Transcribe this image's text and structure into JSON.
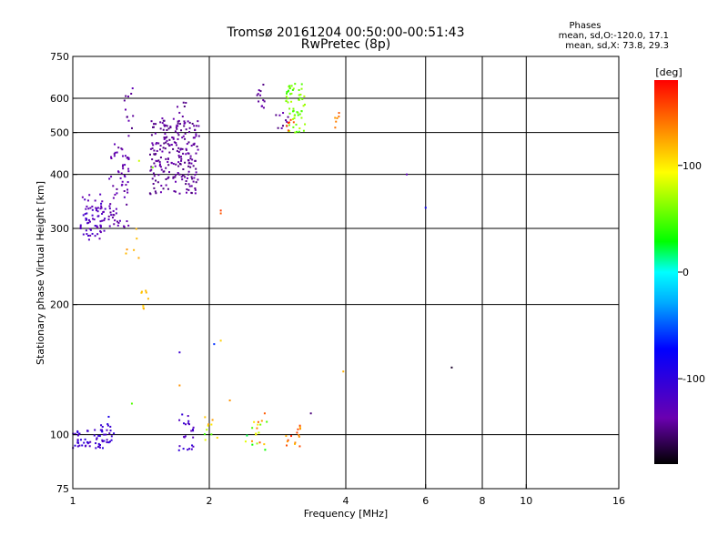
{
  "chart_data": {
    "type": "scatter",
    "title": "Tromsø 20161204 00:50:00-00:51:43",
    "subtitle": "RwPretec (8p)",
    "xlabel": "Frequency [MHz]",
    "ylabel": "Stationary phase Virtual Height [km]",
    "x_scale": "log",
    "y_scale": "log",
    "xlim": [
      1,
      16
    ],
    "ylim": [
      75,
      750
    ],
    "x_ticks": [
      1,
      2,
      4,
      6,
      8,
      10,
      16
    ],
    "y_ticks": [
      75,
      100,
      200,
      300,
      400,
      500,
      600,
      750
    ],
    "grid": true,
    "stats": {
      "heading": "Phases",
      "line_o": "mean, sd,O:-120.0, 17.1",
      "line_x": "mean, sd,X:  73.8, 29.3"
    },
    "colorbar": {
      "label": "[deg]",
      "range": [
        -180,
        180
      ],
      "ticks": [
        100,
        0,
        -100
      ]
    },
    "clusters": [
      {
        "f": [
          1.04,
          1.18
        ],
        "h": [
          282,
          360
        ],
        "ph": [
          -140,
          -110
        ],
        "n": 70
      },
      {
        "f": [
          1.2,
          1.33
        ],
        "h": [
          300,
          480
        ],
        "ph": [
          -145,
          -125
        ],
        "n": 70
      },
      {
        "f": [
          1.3,
          1.36
        ],
        "h": [
          470,
          640
        ],
        "ph": [
          -150,
          -130
        ],
        "n": 12
      },
      {
        "f": [
          1.48,
          1.9
        ],
        "h": [
          360,
          540
        ],
        "ph": [
          -150,
          -135
        ],
        "n": 230
      },
      {
        "f": [
          1.7,
          1.78
        ],
        "h": [
          520,
          610
        ],
        "ph": [
          -150,
          -140
        ],
        "n": 10
      },
      {
        "f": [
          2.55,
          2.65
        ],
        "h": [
          570,
          650
        ],
        "ph": [
          -150,
          -135
        ],
        "n": 12
      },
      {
        "f": [
          2.8,
          3.0
        ],
        "h": [
          510,
          560
        ],
        "ph": [
          -150,
          -130
        ],
        "n": 10
      },
      {
        "f": [
          2.95,
          3.25
        ],
        "h": [
          500,
          650
        ],
        "ph": [
          40,
          75
        ],
        "n": 60
      },
      {
        "f": [
          2.95,
          3.1
        ],
        "h": [
          505,
          535
        ],
        "ph": [
          150,
          170
        ],
        "n": 6
      },
      {
        "f": [
          3.7,
          3.9
        ],
        "h": [
          510,
          560
        ],
        "ph": [
          120,
          150
        ],
        "n": 6
      },
      {
        "f": [
          1.0,
          1.22
        ],
        "h": [
          93,
          103
        ],
        "ph": [
          -125,
          -95
        ],
        "n": 60
      },
      {
        "f": [
          1.15,
          1.25
        ],
        "h": [
          100,
          106
        ],
        "ph": [
          -115,
          -95
        ],
        "n": 8
      },
      {
        "f": [
          1.7,
          1.85
        ],
        "h": [
          92,
          112
        ],
        "ph": [
          -130,
          -100
        ],
        "n": 25
      },
      {
        "f": [
          1.95,
          2.1
        ],
        "h": [
          95,
          110
        ],
        "ph": [
          40,
          140
        ],
        "n": 10
      },
      {
        "f": [
          2.4,
          2.7
        ],
        "h": [
          92,
          108
        ],
        "ph": [
          20,
          160
        ],
        "n": 20
      },
      {
        "f": [
          2.95,
          3.2
        ],
        "h": [
          93,
          106
        ],
        "ph": [
          100,
          170
        ],
        "n": 15
      },
      {
        "f": [
          1.38,
          1.48
        ],
        "h": [
          195,
          235
        ],
        "ph": [
          110,
          125
        ],
        "n": 8
      },
      {
        "f": [
          1.3,
          1.4
        ],
        "h": [
          245,
          300
        ],
        "ph": [
          115,
          130
        ],
        "n": 6
      }
    ],
    "points": [
      {
        "f": 2.12,
        "h": 330,
        "ph": 160
      },
      {
        "f": 2.12,
        "h": 325,
        "ph": 150
      },
      {
        "f": 1.72,
        "h": 130,
        "ph": 130
      },
      {
        "f": 1.72,
        "h": 155,
        "ph": -110
      },
      {
        "f": 2.05,
        "h": 162,
        "ph": -60
      },
      {
        "f": 2.12,
        "h": 165,
        "ph": 110
      },
      {
        "f": 3.95,
        "h": 140,
        "ph": 120
      },
      {
        "f": 6.85,
        "h": 143,
        "ph": -170
      },
      {
        "f": 5.45,
        "h": 400,
        "ph": -130
      },
      {
        "f": 6.0,
        "h": 335,
        "ph": -80
      },
      {
        "f": 1.4,
        "h": 430,
        "ph": 80
      },
      {
        "f": 1.5,
        "h": 415,
        "ph": 60
      },
      {
        "f": 1.35,
        "h": 118,
        "ph": 50
      },
      {
        "f": 1.2,
        "h": 110,
        "ph": -90
      },
      {
        "f": 2.22,
        "h": 120,
        "ph": 130
      },
      {
        "f": 2.65,
        "h": 112,
        "ph": 150
      },
      {
        "f": 3.35,
        "h": 112,
        "ph": -150
      }
    ]
  }
}
